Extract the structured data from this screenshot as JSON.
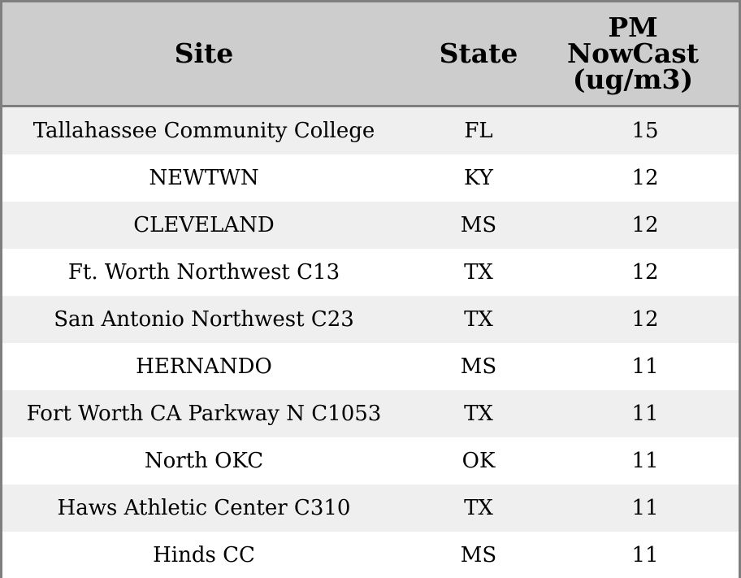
{
  "chart_data": {
    "type": "table",
    "columns": [
      "Site",
      "State",
      "PM NowCast (ug/m3)"
    ],
    "rows": [
      {
        "site": "Tallahassee Community College",
        "state": "FL",
        "pm": "15"
      },
      {
        "site": "NEWTWN",
        "state": "KY",
        "pm": "12"
      },
      {
        "site": "CLEVELAND",
        "state": "MS",
        "pm": "12"
      },
      {
        "site": "Ft. Worth Northwest C13",
        "state": "TX",
        "pm": "12"
      },
      {
        "site": "San Antonio Northwest C23",
        "state": "TX",
        "pm": "12"
      },
      {
        "site": "HERNANDO",
        "state": "MS",
        "pm": "11"
      },
      {
        "site": "Fort Worth CA Parkway N C1053",
        "state": "TX",
        "pm": "11"
      },
      {
        "site": "North OKC",
        "state": "OK",
        "pm": "11"
      },
      {
        "site": "Haws Athletic Center C310",
        "state": "TX",
        "pm": "11"
      },
      {
        "site": "Hinds CC",
        "state": "MS",
        "pm": "11"
      }
    ]
  },
  "colors": {
    "header_background": "#cdcdcd",
    "stripe_background": "#efefef",
    "row_background": "#ffffff",
    "border": "#7f7f7f"
  }
}
